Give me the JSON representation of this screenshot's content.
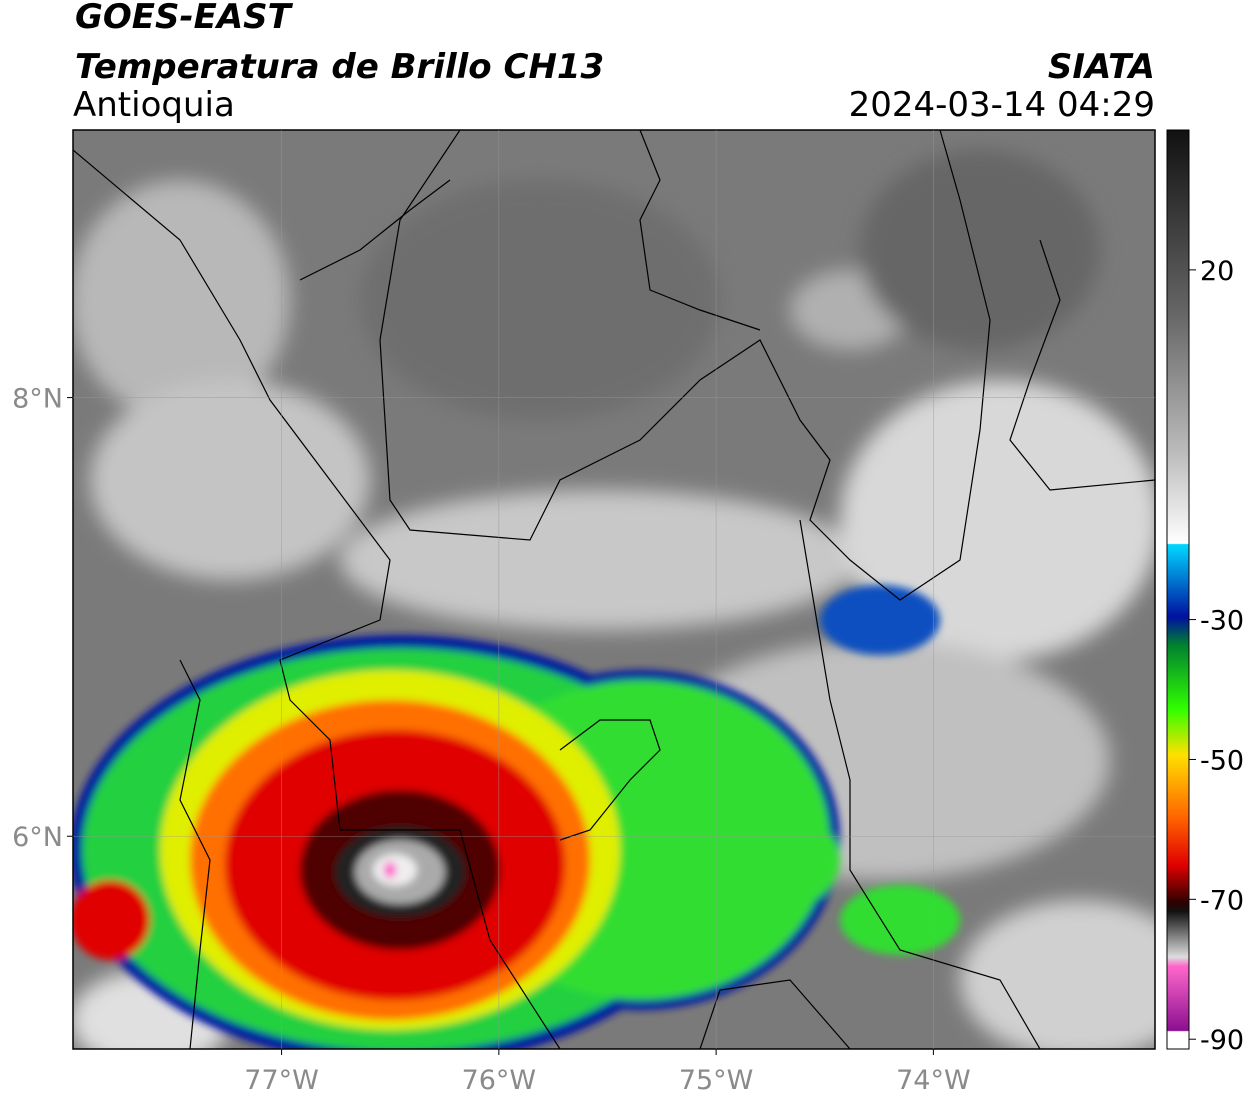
{
  "header": {
    "satellite": "GOES-EAST",
    "product": "Temperatura de Brillo CH13",
    "region": "Antioquia",
    "source": "SIATA",
    "datetime": "2024-03-14 04:29"
  },
  "map": {
    "xlim": [
      -77.96,
      -72.98
    ],
    "ylim": [
      5.03,
      9.22
    ],
    "xticks": [
      {
        "value": -77,
        "label": "77°W"
      },
      {
        "value": -76,
        "label": "76°W"
      },
      {
        "value": -75,
        "label": "75°W"
      },
      {
        "value": -74,
        "label": "74°W"
      }
    ],
    "yticks": [
      {
        "value": 8,
        "label": "8°N"
      },
      {
        "value": 6,
        "label": "6°N"
      }
    ],
    "grid": true
  },
  "colorbar": {
    "lim": [
      -91.4,
      40
    ],
    "ticks": [
      20,
      -30,
      -50,
      -70,
      -90
    ]
  }
}
